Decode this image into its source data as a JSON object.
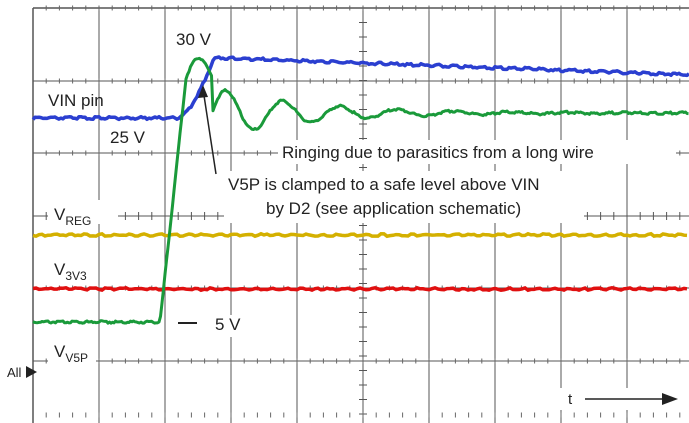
{
  "chart_data": {
    "type": "line",
    "title": "",
    "xlabel": "t",
    "ylabel": "",
    "grid": true,
    "series": [
      {
        "name": "VIN pin",
        "color": "#2b3fd0"
      },
      {
        "name": "V5P",
        "color": "#1a9a3a"
      },
      {
        "name": "VREG",
        "color": "#d4b000"
      },
      {
        "name": "V3V3",
        "color": "#e01010"
      }
    ],
    "labels": {
      "vin_pin": "VIN pin",
      "v_25": "25 V",
      "v_30": "30 V",
      "v_5": "5 V",
      "ringing": "Ringing due to parasitics from a long wire",
      "clamp_line1": "V5P is clamped to a safe level above VIN",
      "clamp_line2": "by D2 (see application schematic)",
      "vreg_main": "V",
      "vreg_sub": "REG",
      "v3v3_main": "V",
      "v3v3_sub": "3V3",
      "v5p_main": "V",
      "v5p_sub": "V5P",
      "all": "All",
      "t": "t"
    }
  }
}
